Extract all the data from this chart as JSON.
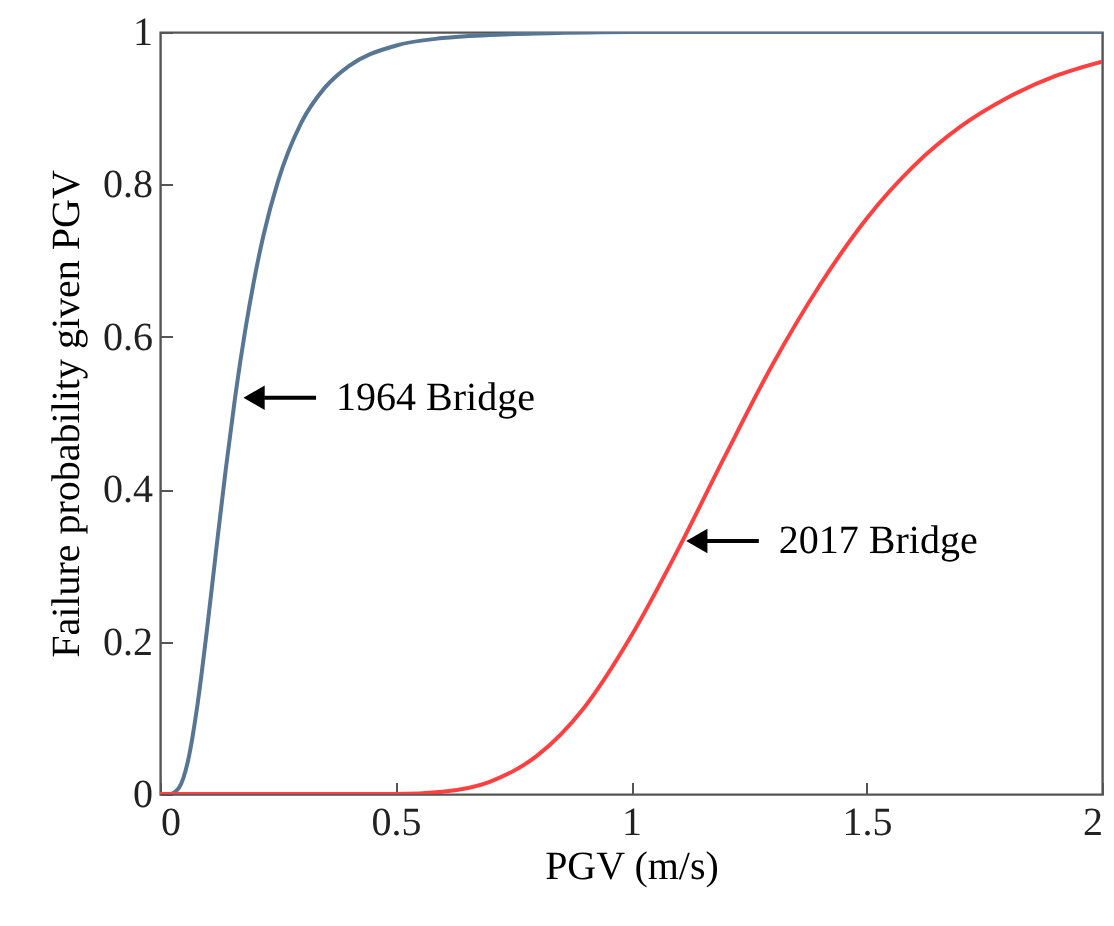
{
  "chart_data": {
    "type": "line",
    "xlabel": "PGV (m/s)",
    "ylabel": "Failure probability given PGV",
    "xlim": [
      0,
      2
    ],
    "xticks": [
      0,
      0.5,
      1,
      1.5,
      2
    ],
    "ylim": [
      0,
      1
    ],
    "yticks": [
      0,
      0.2,
      0.4,
      0.6,
      0.8,
      1
    ],
    "grid": false,
    "line_style": "solid",
    "marker": "none",
    "series": [
      {
        "color": "#567693",
        "x": [
          0,
          0.02,
          0.04,
          0.06,
          0.08,
          0.1,
          0.12,
          0.14,
          0.16,
          0.18,
          0.2,
          0.22,
          0.25,
          0.3,
          0.35,
          0.4,
          0.5,
          0.6,
          0.7,
          0.8,
          1,
          1.5,
          2
        ],
        "values": [
          0,
          0,
          0.008,
          0.045,
          0.119,
          0.217,
          0.324,
          0.428,
          0.523,
          0.605,
          0.675,
          0.734,
          0.803,
          0.881,
          0.927,
          0.955,
          0.982,
          0.992,
          0.996,
          0.998,
          1,
          1,
          1
        ]
      },
      {
        "color": "#ff4040",
        "x": [
          0,
          0.5,
          0.6,
          0.7,
          0.8,
          0.9,
          1,
          1.1,
          1.2,
          1.3,
          1.4,
          1.5,
          1.6,
          1.7,
          1.8,
          1.9,
          2
        ],
        "values": [
          0,
          0,
          0.003,
          0.016,
          0.05,
          0.113,
          0.207,
          0.321,
          0.444,
          0.563,
          0.667,
          0.755,
          0.824,
          0.876,
          0.914,
          0.942,
          0.961
        ]
      }
    ],
    "annotations": [
      {
        "text": "1964 Bridge",
        "x": 0.17,
        "y": 0.52
      },
      {
        "text": "2017 Bridge",
        "x": 1.11,
        "y": 0.332
      }
    ]
  }
}
